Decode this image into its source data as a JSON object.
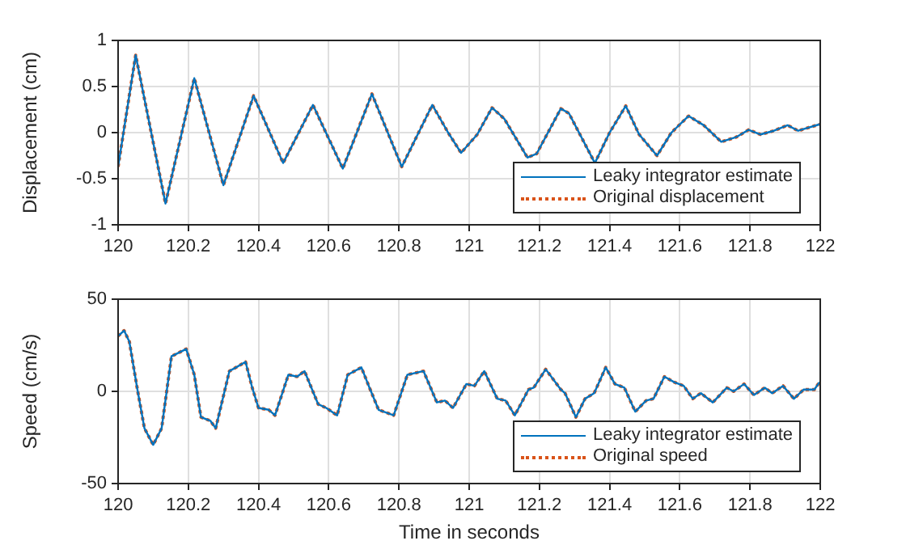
{
  "chart_data": [
    {
      "type": "line",
      "ylabel": "Displacement (cm)",
      "xlim": [
        120,
        122
      ],
      "xticks": [
        120,
        120.2,
        120.4,
        120.6,
        120.8,
        121,
        121.2,
        121.4,
        121.6,
        121.8,
        122
      ],
      "ylim": [
        -1,
        1
      ],
      "yticks": [
        -1,
        -0.5,
        0,
        0.5,
        1
      ],
      "grid": true,
      "legend": "bottom right",
      "marker": "none",
      "x": [
        120.0,
        120.05,
        120.135,
        120.217,
        120.3,
        120.386,
        120.47,
        120.555,
        120.64,
        120.723,
        120.808,
        120.895,
        120.94,
        120.977,
        121.023,
        121.065,
        121.1,
        121.166,
        121.192,
        121.261,
        121.284,
        121.358,
        121.4,
        121.446,
        121.484,
        121.535,
        121.576,
        121.625,
        121.668,
        121.718,
        121.76,
        121.796,
        121.83,
        121.868,
        121.907,
        121.937,
        121.998
      ],
      "series": [
        {
          "name": "Leaky integrator estimate",
          "color": "#0072bd",
          "line_style": "solid",
          "values": [
            -0.37,
            0.84,
            -0.77,
            0.59,
            -0.57,
            0.4,
            -0.33,
            0.3,
            -0.39,
            0.42,
            -0.37,
            0.3,
            0.0,
            -0.22,
            -0.02,
            0.27,
            0.15,
            -0.27,
            -0.23,
            0.26,
            0.21,
            -0.33,
            0.0,
            0.29,
            -0.02,
            -0.25,
            0.0,
            0.18,
            0.08,
            -0.1,
            -0.05,
            0.03,
            -0.02,
            0.02,
            0.08,
            0.02,
            0.09
          ]
        },
        {
          "name": "Original displacement",
          "color": "#d95319",
          "line_style": "dotted",
          "values": [
            -0.37,
            0.84,
            -0.77,
            0.59,
            -0.57,
            0.4,
            -0.33,
            0.3,
            -0.39,
            0.42,
            -0.37,
            0.3,
            0.0,
            -0.22,
            -0.02,
            0.27,
            0.15,
            -0.27,
            -0.23,
            0.26,
            0.21,
            -0.33,
            0.0,
            0.29,
            -0.02,
            -0.25,
            0.0,
            0.18,
            0.08,
            -0.1,
            -0.05,
            0.03,
            -0.02,
            0.02,
            0.08,
            0.02,
            0.09
          ]
        }
      ]
    },
    {
      "type": "line",
      "xlabel": "Time in seconds",
      "ylabel": "Speed (cm/s)",
      "xlim": [
        120,
        122
      ],
      "xticks": [
        120,
        120.2,
        120.4,
        120.6,
        120.8,
        121,
        121.2,
        121.4,
        121.6,
        121.8,
        122
      ],
      "ylim": [
        -50,
        50
      ],
      "yticks": [
        -50,
        0,
        50
      ],
      "grid": true,
      "legend": "bottom right",
      "marker": "none",
      "x": [
        120.0,
        120.017,
        120.032,
        120.055,
        120.075,
        120.1,
        120.124,
        120.152,
        120.194,
        120.217,
        120.236,
        120.263,
        120.278,
        120.317,
        120.336,
        120.363,
        120.382,
        120.4,
        120.429,
        120.447,
        120.485,
        120.51,
        120.531,
        120.57,
        120.593,
        120.624,
        120.654,
        120.693,
        120.716,
        120.742,
        120.785,
        120.824,
        120.87,
        120.908,
        120.931,
        120.954,
        120.992,
        121.015,
        121.043,
        121.08,
        121.104,
        121.13,
        121.169,
        121.184,
        121.218,
        121.261,
        121.273,
        121.304,
        121.33,
        121.356,
        121.389,
        121.415,
        121.442,
        121.473,
        121.504,
        121.525,
        121.556,
        121.584,
        121.611,
        121.637,
        121.66,
        121.694,
        121.734,
        121.753,
        121.783,
        121.811,
        121.842,
        121.863,
        121.894,
        121.925,
        121.953,
        121.983,
        121.998
      ],
      "series": [
        {
          "name": "Leaky integrator estimate",
          "color": "#0072bd",
          "line_style": "solid",
          "values": [
            30,
            33,
            27,
            1,
            -20,
            -29,
            -20,
            19,
            23,
            9,
            -14,
            -16,
            -20,
            11,
            13,
            16,
            2,
            -9,
            -10,
            -13,
            9,
            8,
            11,
            -7,
            -9,
            -13,
            9,
            13,
            2,
            -10,
            -13,
            9,
            11,
            -6,
            -5,
            -9,
            4,
            3,
            11,
            -4,
            -5,
            -13,
            1,
            2,
            12,
            1,
            -1,
            -14,
            -4,
            -1,
            13,
            4,
            2,
            -11,
            -5,
            -4,
            8,
            5,
            3,
            -4,
            -1,
            -6,
            2,
            0,
            4,
            -2,
            2,
            -1,
            3,
            -4,
            1,
            1,
            5
          ]
        },
        {
          "name": "Original speed",
          "color": "#d95319",
          "line_style": "dotted",
          "values": [
            30,
            33,
            27,
            1,
            -20,
            -29,
            -20,
            19,
            23,
            9,
            -14,
            -16,
            -20,
            11,
            13,
            16,
            2,
            -9,
            -10,
            -13,
            9,
            8,
            11,
            -7,
            -9,
            -13,
            9,
            13,
            2,
            -10,
            -13,
            9,
            11,
            -6,
            -5,
            -9,
            4,
            3,
            11,
            -4,
            -5,
            -13,
            1,
            2,
            12,
            1,
            -1,
            -14,
            -4,
            -1,
            13,
            4,
            2,
            -11,
            -5,
            -4,
            8,
            5,
            3,
            -4,
            -1,
            -6,
            2,
            0,
            4,
            -2,
            2,
            -1,
            3,
            -4,
            1,
            1,
            5
          ]
        }
      ]
    }
  ]
}
